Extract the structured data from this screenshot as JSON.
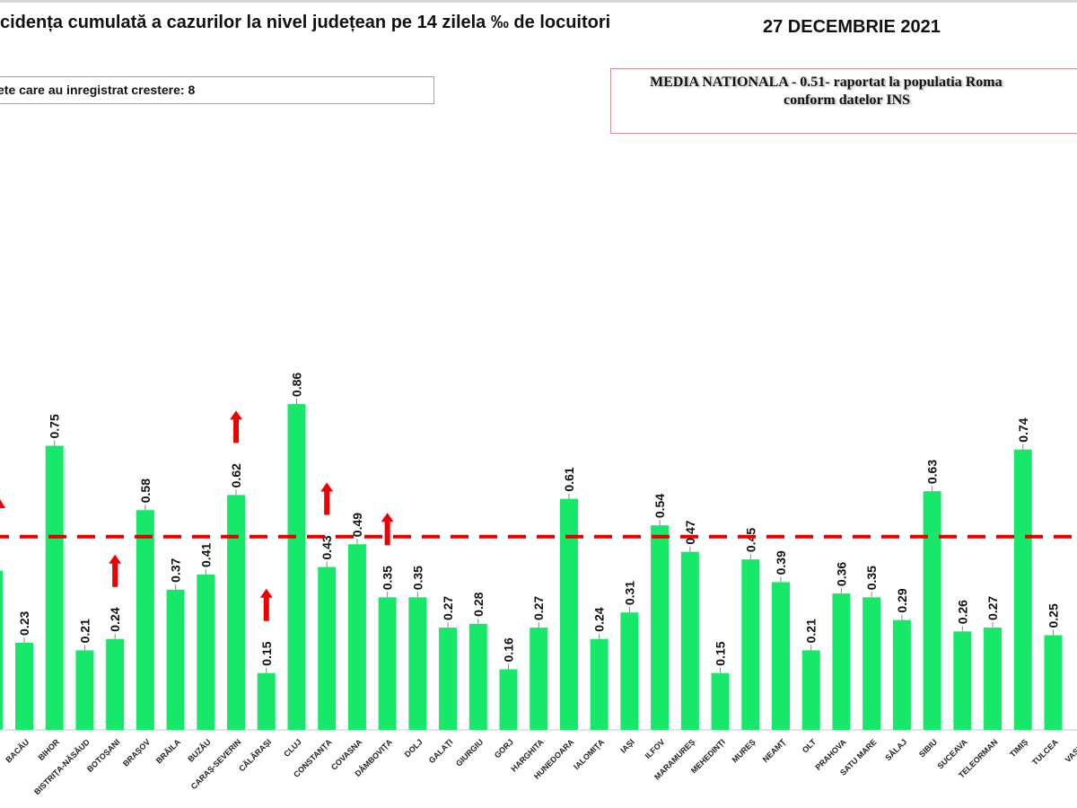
{
  "header": {
    "title": "cidența cumulată a cazurilor la nivel județean pe 14 zilela ‰ de locuitori",
    "date": "27 DECEMBRIE 2021"
  },
  "increase_box": "ete care au inregistrat crestere: 8",
  "national_box": {
    "line1": "MEDIA NATIONALA  - 0.51-  raportat la populatia Roma",
    "line2": "conform datelor INS"
  },
  "chart_data": {
    "type": "bar",
    "title": "",
    "xlabel": "",
    "ylabel": "",
    "ylim": [
      0,
      0.95
    ],
    "grid": false,
    "bar_color": "#18e86a",
    "reference_line": {
      "value": 0.51,
      "color": "#e00000",
      "style": "dashed"
    },
    "increase_marker_color": "#ee0000",
    "categories": [
      "BACĂU",
      "BIHOR",
      "BISTRIȚA-NĂSĂUD",
      "BOTOȘANI",
      "BRAȘOV",
      "BRĂILA",
      "BUZĂU",
      "CARAȘ-SEVERIN",
      "CĂLĂRAȘI",
      "CLUJ",
      "CONSTANȚA",
      "COVASNA",
      "DÂMBOVIȚA",
      "DOLJ",
      "GALAȚI",
      "GIURGIU",
      "GORJ",
      "HARGHITA",
      "HUNEDOARA",
      "IALOMIȚA",
      "IAȘI",
      "ILFOV",
      "MARAMUREȘ",
      "MEHEDINȚI",
      "MUREȘ",
      "NEAMȚ",
      "OLT",
      "PRAHOVA",
      "SATU MARE",
      "SĂLAJ",
      "SIBIU",
      "SUCEAVA",
      "TELEORMAN",
      "TIMIȘ",
      "TULCEA",
      "VASLUI"
    ],
    "values": [
      0.23,
      0.75,
      0.21,
      0.24,
      0.58,
      0.37,
      0.41,
      0.62,
      0.15,
      0.86,
      0.43,
      0.49,
      0.35,
      0.35,
      0.27,
      0.28,
      0.16,
      0.27,
      0.61,
      0.24,
      0.31,
      0.54,
      0.47,
      0.15,
      0.45,
      0.39,
      0.21,
      0.36,
      0.35,
      0.29,
      0.63,
      0.26,
      0.27,
      0.74,
      0.25,
      null
    ],
    "labels": [
      "0.23",
      "0.75",
      "0.21",
      "0.24",
      "0.58",
      "0.37",
      "0.41",
      "0.62",
      "0.15",
      "0.86",
      "0.43",
      "0.49",
      "0.35",
      "0.35",
      "0.27",
      "0.28",
      "0.16",
      "0.27",
      "0.61",
      "0.24",
      "0.31",
      "0.54",
      "0.47",
      "0.15",
      "0.45",
      "0.39",
      "0.21",
      "0.36",
      "0.35",
      "0.29",
      "0.63",
      "0.26",
      "0.27",
      "0.74",
      "0.25",
      ""
    ],
    "increased": [
      "BOTOȘANI",
      "CARAȘ-SEVERIN",
      "CĂLĂRAȘI",
      "CONSTANȚA",
      "DÂMBOVIȚA"
    ]
  }
}
